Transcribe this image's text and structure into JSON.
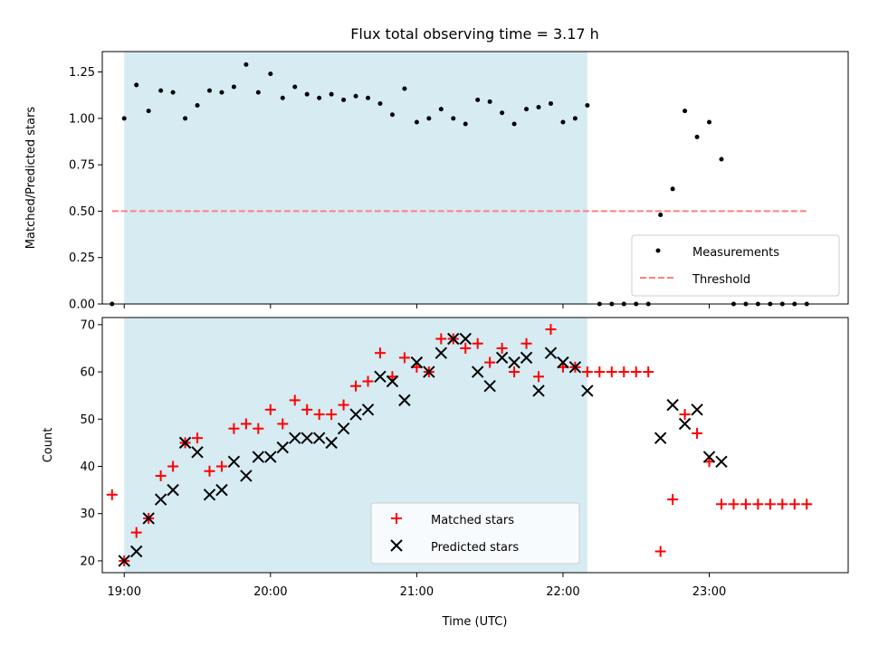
{
  "chart_data": [
    {
      "type": "scatter",
      "title": "Flux total observing time = 3.17 h",
      "xlabel": "",
      "ylabel": "Matched/Predicted stars",
      "xlim": [
        "18:51",
        "23:57"
      ],
      "ylim": [
        0,
        1.36
      ],
      "yticks": [
        0,
        0.25,
        0.5,
        0.75,
        1.0,
        1.25
      ],
      "ytick_labels": [
        "0.00",
        "0.25",
        "0.50",
        "0.75",
        "1.00",
        "1.25"
      ],
      "shaded_span": [
        "19:00",
        "22:10"
      ],
      "shaded_color": "#add8e6",
      "threshold": {
        "name": "Threshold",
        "y": 0.5,
        "x_range": [
          "18:55",
          "23:40"
        ],
        "color": "#ff7f7f",
        "style": "dashed"
      },
      "legend": {
        "position": "lower-right",
        "entries": [
          {
            "label": "Measurements",
            "marker": "dot"
          },
          {
            "label": "Threshold",
            "marker": "dash"
          }
        ]
      },
      "series": [
        {
          "name": "Measurements",
          "color": "#000000",
          "x": [
            "18:55",
            "19:00",
            "19:05",
            "19:10",
            "19:15",
            "19:20",
            "19:25",
            "19:30",
            "19:35",
            "19:40",
            "19:45",
            "19:50",
            "19:55",
            "20:00",
            "20:05",
            "20:10",
            "20:15",
            "20:20",
            "20:25",
            "20:30",
            "20:35",
            "20:40",
            "20:45",
            "20:50",
            "20:55",
            "21:00",
            "21:05",
            "21:10",
            "21:15",
            "21:20",
            "21:25",
            "21:30",
            "21:35",
            "21:40",
            "21:45",
            "21:50",
            "21:55",
            "22:00",
            "22:05",
            "22:10",
            "22:15",
            "22:20",
            "22:25",
            "22:30",
            "22:35",
            "22:40",
            "22:45",
            "22:50",
            "22:55",
            "23:00",
            "23:05",
            "23:10",
            "23:15",
            "23:20",
            "23:25",
            "23:30",
            "23:35",
            "23:40"
          ],
          "y": [
            0,
            1.0,
            1.18,
            1.04,
            1.15,
            1.14,
            1.0,
            1.07,
            1.15,
            1.14,
            1.17,
            1.29,
            1.14,
            1.24,
            1.11,
            1.17,
            1.13,
            1.11,
            1.13,
            1.1,
            1.12,
            1.11,
            1.08,
            1.02,
            1.16,
            0.98,
            1.0,
            1.05,
            1.0,
            0.97,
            1.1,
            1.09,
            1.03,
            0.97,
            1.05,
            1.06,
            1.08,
            0.98,
            1.0,
            1.07,
            0,
            0,
            0,
            0,
            0,
            0.48,
            0.62,
            1.04,
            0.9,
            0.98,
            0.78,
            0,
            0,
            0,
            0,
            0,
            0,
            0
          ]
        }
      ]
    },
    {
      "type": "scatter",
      "title": "",
      "xlabel": "Time (UTC)",
      "ylabel": "Count",
      "xlim": [
        "18:51",
        "23:57"
      ],
      "ylim": [
        17.5,
        71.5
      ],
      "yticks": [
        20,
        30,
        40,
        50,
        60,
        70
      ],
      "ytick_labels": [
        "20",
        "30",
        "40",
        "50",
        "60",
        "70"
      ],
      "xticks": [
        "19:00",
        "20:00",
        "21:00",
        "22:00",
        "23:00"
      ],
      "shaded_span": [
        "19:00",
        "22:10"
      ],
      "shaded_color": "#add8e6",
      "legend": {
        "position": "lower-center",
        "entries": [
          {
            "label": "Matched stars",
            "marker": "plus"
          },
          {
            "label": "Predicted stars",
            "marker": "x"
          }
        ]
      },
      "series": [
        {
          "name": "Matched stars",
          "color": "#ff0000",
          "marker": "plus",
          "x": [
            "18:55",
            "19:00",
            "19:05",
            "19:10",
            "19:15",
            "19:20",
            "19:25",
            "19:30",
            "19:35",
            "19:40",
            "19:45",
            "19:50",
            "19:55",
            "20:00",
            "20:05",
            "20:10",
            "20:15",
            "20:20",
            "20:25",
            "20:30",
            "20:35",
            "20:40",
            "20:45",
            "20:50",
            "20:55",
            "21:00",
            "21:05",
            "21:10",
            "21:15",
            "21:20",
            "21:25",
            "21:30",
            "21:35",
            "21:40",
            "21:45",
            "21:50",
            "21:55",
            "22:00",
            "22:05",
            "22:10",
            "22:15",
            "22:20",
            "22:25",
            "22:30",
            "22:35",
            "22:40",
            "22:45",
            "22:50",
            "22:55",
            "23:00",
            "23:05",
            "23:10",
            "23:15",
            "23:20",
            "23:25",
            "23:30",
            "23:35",
            "23:40"
          ],
          "y": [
            34,
            20,
            26,
            29,
            38,
            40,
            45,
            46,
            39,
            40,
            48,
            49,
            48,
            52,
            49,
            54,
            52,
            51,
            51,
            53,
            57,
            58,
            64,
            59,
            63,
            61,
            60,
            67,
            67,
            65,
            66,
            62,
            65,
            60,
            66,
            59,
            69,
            61,
            61,
            60,
            60,
            60,
            60,
            60,
            60,
            22,
            33,
            51,
            47,
            41,
            32,
            32,
            32,
            32,
            32,
            32,
            32,
            32
          ]
        },
        {
          "name": "Predicted stars",
          "color": "#000000",
          "marker": "x",
          "x": [
            "19:00",
            "19:05",
            "19:10",
            "19:15",
            "19:20",
            "19:25",
            "19:30",
            "19:35",
            "19:40",
            "19:45",
            "19:50",
            "19:55",
            "20:00",
            "20:05",
            "20:10",
            "20:15",
            "20:20",
            "20:25",
            "20:30",
            "20:35",
            "20:40",
            "20:45",
            "20:50",
            "20:55",
            "21:00",
            "21:05",
            "21:10",
            "21:15",
            "21:20",
            "21:25",
            "21:30",
            "21:35",
            "21:40",
            "21:45",
            "21:50",
            "21:55",
            "22:00",
            "22:05",
            "22:10",
            "22:40",
            "22:45",
            "22:50",
            "22:55",
            "23:00",
            "23:05"
          ],
          "y": [
            20,
            22,
            29,
            33,
            35,
            45,
            43,
            34,
            35,
            41,
            38,
            42,
            42,
            44,
            46,
            46,
            46,
            45,
            48,
            51,
            52,
            59,
            58,
            54,
            62,
            60,
            64,
            67,
            67,
            60,
            57,
            63,
            62,
            63,
            56,
            64,
            62,
            61,
            56,
            46,
            53,
            49,
            52,
            42,
            41
          ]
        }
      ]
    }
  ]
}
